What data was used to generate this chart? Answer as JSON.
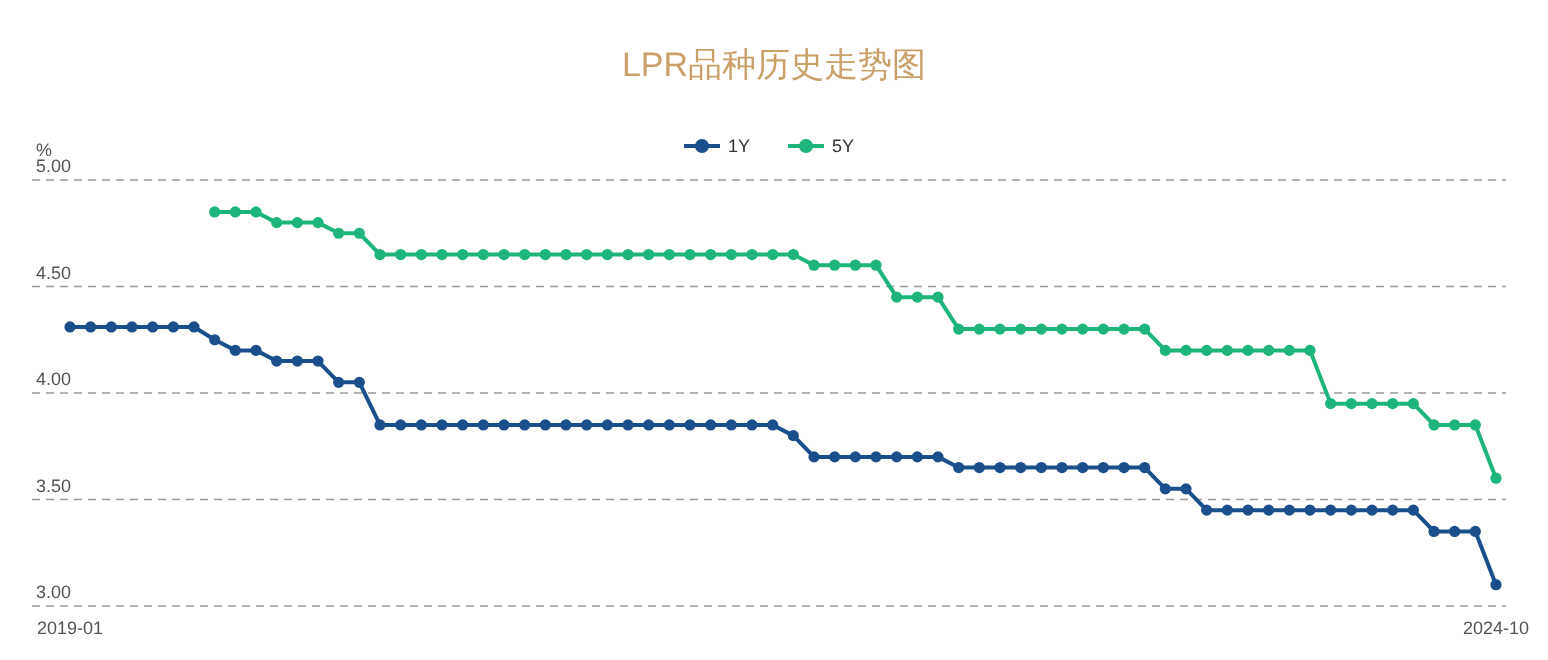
{
  "chart_data": {
    "type": "line",
    "title": "LPR品种历史走势图",
    "ylabel": "%",
    "categories": [
      "2019-01",
      null,
      null,
      null,
      null,
      null,
      null,
      null,
      null,
      null,
      null,
      null,
      null,
      null,
      null,
      null,
      null,
      null,
      null,
      null,
      null,
      null,
      null,
      null,
      null,
      null,
      null,
      null,
      null,
      null,
      null,
      null,
      null,
      null,
      null,
      null,
      null,
      null,
      null,
      null,
      null,
      null,
      null,
      null,
      null,
      null,
      null,
      null,
      null,
      null,
      null,
      null,
      null,
      null,
      null,
      null,
      null,
      null,
      null,
      null,
      null,
      null,
      null,
      null,
      null,
      null,
      null,
      null,
      null,
      "2024-10"
    ],
    "series": [
      {
        "name": "1Y",
        "color": "#1b4f8c",
        "values": [
          4.31,
          4.31,
          4.31,
          4.31,
          4.31,
          4.31,
          4.31,
          4.25,
          4.2,
          4.2,
          4.15,
          4.15,
          4.15,
          4.05,
          4.05,
          3.85,
          3.85,
          3.85,
          3.85,
          3.85,
          3.85,
          3.85,
          3.85,
          3.85,
          3.85,
          3.85,
          3.85,
          3.85,
          3.85,
          3.85,
          3.85,
          3.85,
          3.85,
          3.85,
          3.85,
          3.8,
          3.7,
          3.7,
          3.7,
          3.7,
          3.7,
          3.7,
          3.7,
          3.65,
          3.65,
          3.65,
          3.65,
          3.65,
          3.65,
          3.65,
          3.65,
          3.65,
          3.65,
          3.55,
          3.55,
          3.45,
          3.45,
          3.45,
          3.45,
          3.45,
          3.45,
          3.45,
          3.45,
          3.45,
          3.45,
          3.45,
          3.35,
          3.35,
          3.35,
          3.1
        ]
      },
      {
        "name": "5Y",
        "color": "#1db57b",
        "values": [
          null,
          null,
          null,
          null,
          null,
          null,
          null,
          4.85,
          4.85,
          4.85,
          4.8,
          4.8,
          4.8,
          4.75,
          4.75,
          4.65,
          4.65,
          4.65,
          4.65,
          4.65,
          4.65,
          4.65,
          4.65,
          4.65,
          4.65,
          4.65,
          4.65,
          4.65,
          4.65,
          4.65,
          4.65,
          4.65,
          4.65,
          4.65,
          4.65,
          4.65,
          4.6,
          4.6,
          4.6,
          4.6,
          4.45,
          4.45,
          4.45,
          4.3,
          4.3,
          4.3,
          4.3,
          4.3,
          4.3,
          4.3,
          4.3,
          4.3,
          4.3,
          4.2,
          4.2,
          4.2,
          4.2,
          4.2,
          4.2,
          4.2,
          4.2,
          3.95,
          3.95,
          3.95,
          3.95,
          3.95,
          3.85,
          3.85,
          3.85,
          3.6
        ]
      }
    ],
    "ylim": [
      3,
      5
    ],
    "yticks": [
      {
        "value": 3,
        "label": "3.00"
      },
      {
        "value": 3.5,
        "label": "3.50"
      },
      {
        "value": 4,
        "label": "4.00"
      },
      {
        "value": 4.5,
        "label": "4.50"
      },
      {
        "value": 5,
        "label": "5.00"
      }
    ],
    "grid": "y",
    "legend": "top",
    "marker": "circle",
    "line_style": "solid"
  }
}
